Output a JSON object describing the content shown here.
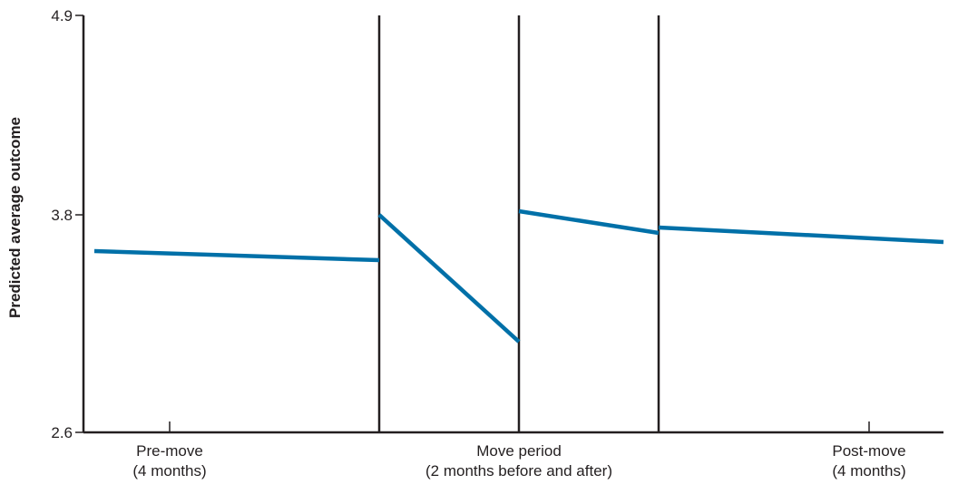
{
  "chart_data": {
    "type": "line",
    "ylabel": "Predicted average outcome",
    "xlabel": "",
    "ylim": [
      2.6,
      4.9
    ],
    "yticks": [
      "4.9",
      "3.8",
      "2.6"
    ],
    "grid": false,
    "line_color": "#0070a8",
    "axis_color": "#231f20",
    "periods": [
      "pre-move",
      "move-before",
      "move-after",
      "post-move"
    ],
    "categories": [
      {
        "id": "pre",
        "lines": [
          "Pre-move",
          "(4 months)"
        ]
      },
      {
        "id": "move",
        "lines": [
          "Move period",
          "(2 months before and after)"
        ]
      },
      {
        "id": "post",
        "lines": [
          "Post-move",
          "(4 months)"
        ]
      }
    ],
    "series": [
      {
        "segment": "pre-move",
        "x": [
          0,
          1
        ],
        "y": [
          3.6,
          3.55
        ]
      },
      {
        "segment": "move-before",
        "x": [
          0,
          1
        ],
        "y": [
          3.8,
          3.1
        ]
      },
      {
        "segment": "move-after",
        "x": [
          0,
          1
        ],
        "y": [
          3.82,
          3.7
        ]
      },
      {
        "segment": "post-move",
        "x": [
          0,
          1
        ],
        "y": [
          3.73,
          3.65
        ]
      }
    ]
  }
}
